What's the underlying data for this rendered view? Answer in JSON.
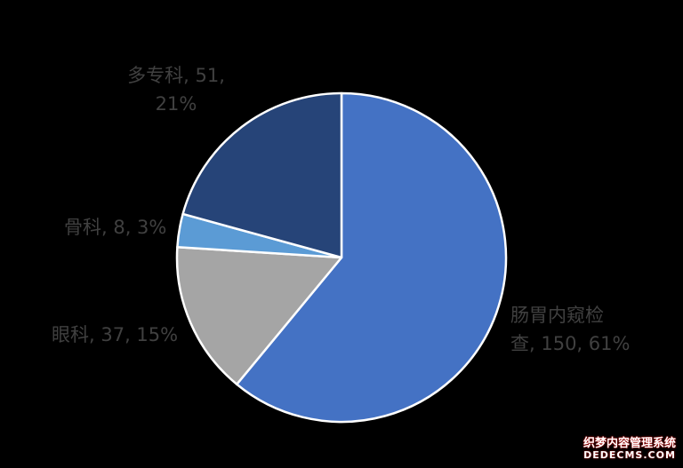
{
  "chart_data": {
    "type": "pie",
    "title": "",
    "slices": [
      {
        "label_lines": [
          "肠胃内窥检",
          "查, 150, 61%"
        ],
        "category": "肠胃内窥检查",
        "value": 150,
        "percent": "61%",
        "color": "#4472c4"
      },
      {
        "label_lines": [
          "眼科, 37, 15%"
        ],
        "category": "眼科",
        "value": 37,
        "percent": "15%",
        "color": "#a5a5a5"
      },
      {
        "label_lines": [
          "骨科, 8, 3%"
        ],
        "category": "骨科",
        "value": 8,
        "percent": "3%",
        "color": "#5b9bd5"
      },
      {
        "label_lines": [
          "多专科, 51,",
          "21%"
        ],
        "category": "多专科",
        "value": 51,
        "percent": "21%",
        "color": "#264478"
      }
    ],
    "start_angle": "12 o'clock",
    "direction": "clockwise",
    "slice_border_color": "#ffffff",
    "label_color": "#404040",
    "legend": "none"
  },
  "background_color": "#000000",
  "watermark": {
    "line1": "织梦内容管理系统",
    "line2": "DEDECMS.COM"
  }
}
